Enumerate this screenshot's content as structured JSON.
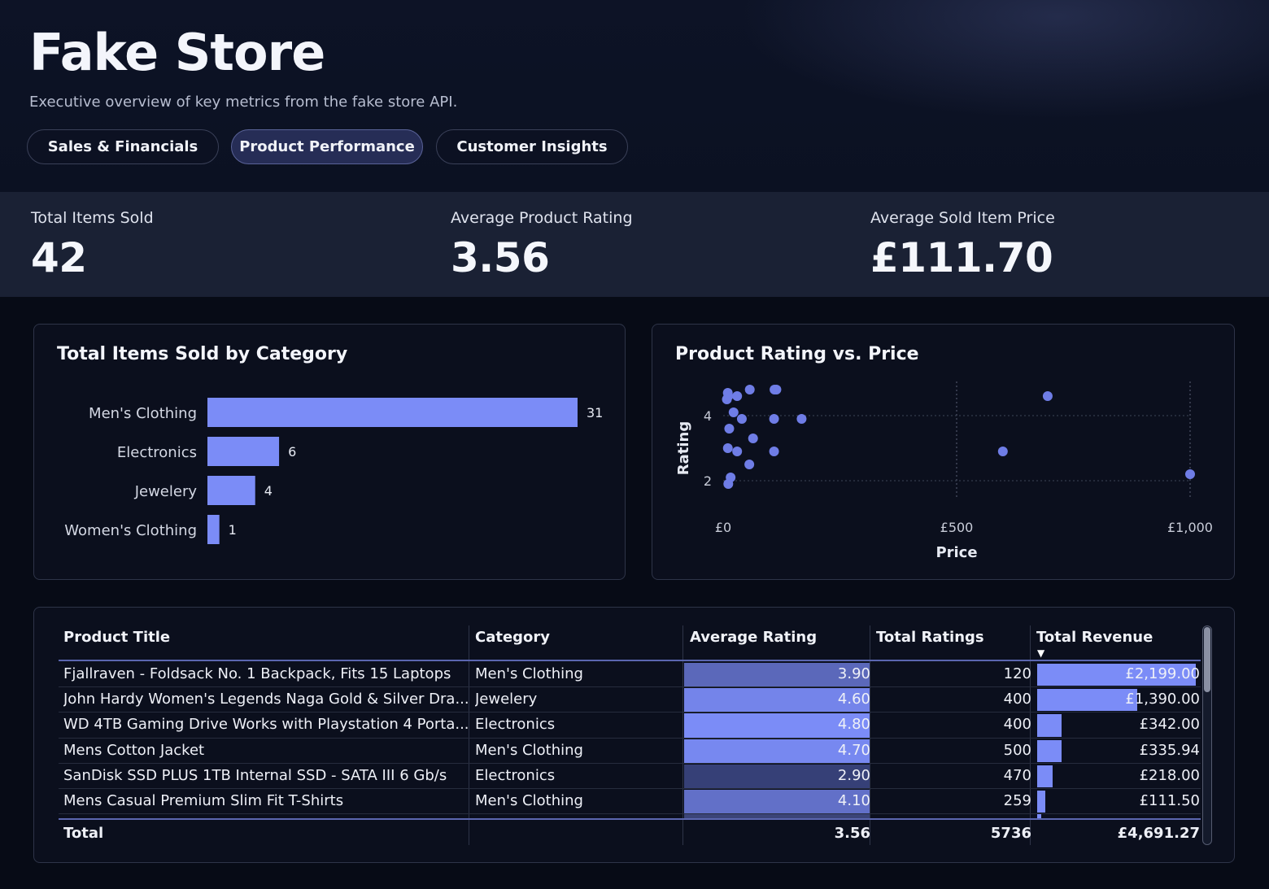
{
  "header": {
    "title": "Fake Store",
    "subtitle": "Executive overview of key metrics from the fake store API."
  },
  "tabs": [
    {
      "label": "Sales & Financials",
      "active": false
    },
    {
      "label": "Product Performance",
      "active": true
    },
    {
      "label": "Customer Insights",
      "active": false
    }
  ],
  "kpis": [
    {
      "label": "Total Items Sold",
      "value": "42"
    },
    {
      "label": "Average Product Rating",
      "value": "3.56"
    },
    {
      "label": "Average Sold Item Price",
      "value": "£111.70"
    }
  ],
  "colors": {
    "accent": "#7b8cf7",
    "point": "#6f7de6",
    "background": "#070b16",
    "kpi_band": "#1a2134"
  },
  "bar_panel": {
    "title": "Total Items Sold by Category"
  },
  "scatter_panel": {
    "title": "Product Rating vs. Price"
  },
  "chart_data": [
    {
      "type": "bar",
      "orientation": "horizontal",
      "title": "Total Items Sold by Category",
      "categories": [
        "Men's Clothing",
        "Electronics",
        "Jewelery",
        "Women's Clothing"
      ],
      "values": [
        31,
        6,
        4,
        1
      ],
      "data_labels": [
        "31",
        "6",
        "4",
        "1"
      ],
      "xlim": [
        0,
        31
      ]
    },
    {
      "type": "scatter",
      "title": "Product Rating vs. Price",
      "xlabel": "Price",
      "ylabel": "Rating",
      "xticks": [
        "£0",
        "£500",
        "£1,000"
      ],
      "xtick_values": [
        0,
        500,
        1000
      ],
      "yticks": [
        "2",
        "4"
      ],
      "ytick_values": [
        2,
        4
      ],
      "xlim": [
        0,
        1000
      ],
      "ylim": [
        1.5,
        5
      ],
      "grid": true,
      "points": [
        {
          "x": 9.85,
          "y": 4.7
        },
        {
          "x": 10.99,
          "y": 4.6
        },
        {
          "x": 7.95,
          "y": 4.5
        },
        {
          "x": 56.99,
          "y": 4.8
        },
        {
          "x": 109.95,
          "y": 4.8
        },
        {
          "x": 114,
          "y": 4.8
        },
        {
          "x": 29.95,
          "y": 4.6
        },
        {
          "x": 695,
          "y": 4.6
        },
        {
          "x": 22.3,
          "y": 4.1
        },
        {
          "x": 39.99,
          "y": 3.9
        },
        {
          "x": 109,
          "y": 3.9
        },
        {
          "x": 168,
          "y": 3.9
        },
        {
          "x": 12.99,
          "y": 3.6
        },
        {
          "x": 64,
          "y": 3.3
        },
        {
          "x": 9.99,
          "y": 3.0
        },
        {
          "x": 29.95,
          "y": 2.9
        },
        {
          "x": 109,
          "y": 2.9
        },
        {
          "x": 599,
          "y": 2.9
        },
        {
          "x": 55.99,
          "y": 2.5
        },
        {
          "x": 15.99,
          "y": 2.1
        },
        {
          "x": 10.99,
          "y": 1.9
        },
        {
          "x": 999.99,
          "y": 2.2
        }
      ]
    }
  ],
  "table": {
    "headers": [
      "Product Title",
      "Category",
      "Average Rating",
      "Total Ratings",
      "Total Revenue"
    ],
    "sort_indicator": "▼",
    "rows": [
      {
        "title": "Fjallraven - Foldsack No. 1 Backpack, Fits 15 Laptops",
        "category": "Men's Clothing",
        "rating": "3.90",
        "rating_value": 3.9,
        "total_ratings": "120",
        "revenue": "£2,199.00",
        "revenue_value": 2199
      },
      {
        "title": "John Hardy Women's Legends Naga Gold & Silver Dra...",
        "category": "Jewelery",
        "rating": "4.60",
        "rating_value": 4.6,
        "total_ratings": "400",
        "revenue": "£1,390.00",
        "revenue_value": 1390
      },
      {
        "title": "WD 4TB Gaming Drive Works with Playstation 4 Porta...",
        "category": "Electronics",
        "rating": "4.80",
        "rating_value": 4.8,
        "total_ratings": "400",
        "revenue": "£342.00",
        "revenue_value": 342
      },
      {
        "title": "Mens Cotton Jacket",
        "category": "Men's Clothing",
        "rating": "4.70",
        "rating_value": 4.7,
        "total_ratings": "500",
        "revenue": "£335.94",
        "revenue_value": 335.94
      },
      {
        "title": "SanDisk SSD PLUS 1TB Internal SSD - SATA III 6 Gb/s",
        "category": "Electronics",
        "rating": "2.90",
        "rating_value": 2.9,
        "total_ratings": "470",
        "revenue": "£218.00",
        "revenue_value": 218
      },
      {
        "title": "Mens Casual Premium Slim Fit T-Shirts",
        "category": "Men's Clothing",
        "rating": "4.10",
        "rating_value": 4.1,
        "total_ratings": "259",
        "revenue": "£111.50",
        "revenue_value": 111.5
      }
    ],
    "totals": {
      "label": "Total",
      "rating": "3.56",
      "total_ratings": "5736",
      "revenue": "£4,691.27"
    }
  }
}
